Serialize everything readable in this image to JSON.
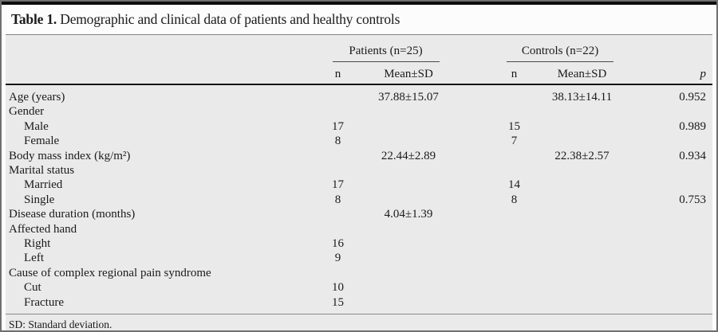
{
  "title": {
    "label": "Table 1.",
    "text": "Demographic and clinical data of patients and healthy controls"
  },
  "table": {
    "groups": [
      {
        "label": "Patients (n=25)"
      },
      {
        "label": "Controls (n=22)"
      }
    ],
    "subheaders": {
      "n_patients": "n",
      "mean_sd_patients": "Mean±SD",
      "n_controls": "n",
      "mean_sd_controls": "Mean±SD",
      "p": "p"
    },
    "rows": [
      {
        "label": "Age (years)",
        "indent": false,
        "patients_n": "",
        "patients_mean": "37.88±15.07",
        "controls_n": "",
        "controls_mean": "38.13±14.11",
        "p": "0.952"
      },
      {
        "label": "Gender",
        "indent": false,
        "patients_n": "",
        "patients_mean": "",
        "controls_n": "",
        "controls_mean": "",
        "p": ""
      },
      {
        "label": "Male",
        "indent": true,
        "patients_n": "17",
        "patients_mean": "",
        "controls_n": "15",
        "controls_mean": "",
        "p": "0.989"
      },
      {
        "label": "Female",
        "indent": true,
        "patients_n": "8",
        "patients_mean": "",
        "controls_n": "7",
        "controls_mean": "",
        "p": ""
      },
      {
        "label": "Body mass index (kg/m²)",
        "indent": false,
        "patients_n": "",
        "patients_mean": "22.44±2.89",
        "controls_n": "",
        "controls_mean": "22.38±2.57",
        "p": "0.934"
      },
      {
        "label": "Marital status",
        "indent": false,
        "patients_n": "",
        "patients_mean": "",
        "controls_n": "",
        "controls_mean": "",
        "p": ""
      },
      {
        "label": "Married",
        "indent": true,
        "patients_n": "17",
        "patients_mean": "",
        "controls_n": "14",
        "controls_mean": "",
        "p": ""
      },
      {
        "label": "Single",
        "indent": true,
        "patients_n": "8",
        "patients_mean": "",
        "controls_n": "8",
        "controls_mean": "",
        "p": "0.753"
      },
      {
        "label": "Disease duration (months)",
        "indent": false,
        "patients_n": "",
        "patients_mean": "4.04±1.39",
        "controls_n": "",
        "controls_mean": "",
        "p": ""
      },
      {
        "label": "Affected hand",
        "indent": false,
        "patients_n": "",
        "patients_mean": "",
        "controls_n": "",
        "controls_mean": "",
        "p": ""
      },
      {
        "label": "Right",
        "indent": true,
        "patients_n": "16",
        "patients_mean": "",
        "controls_n": "",
        "controls_mean": "",
        "p": ""
      },
      {
        "label": "Left",
        "indent": true,
        "patients_n": "9",
        "patients_mean": "",
        "controls_n": "",
        "controls_mean": "",
        "p": ""
      },
      {
        "label": "Cause of complex regional pain syndrome",
        "indent": false,
        "patients_n": "",
        "patients_mean": "",
        "controls_n": "",
        "controls_mean": "",
        "p": ""
      },
      {
        "label": "Cut",
        "indent": true,
        "patients_n": "10",
        "patients_mean": "",
        "controls_n": "",
        "controls_mean": "",
        "p": ""
      },
      {
        "label": "Fracture",
        "indent": true,
        "patients_n": "15",
        "patients_mean": "",
        "controls_n": "",
        "controls_mean": "",
        "p": ""
      }
    ],
    "footnote": "SD: Standard deviation."
  },
  "colors": {
    "panel_background": "#eaeaea",
    "top_rule": "#0d0d0d",
    "header_bottom_rule": "#151515",
    "gray_rule": "#828282",
    "outer_border": "#6f6f6f",
    "text": "#1a1a1a"
  }
}
